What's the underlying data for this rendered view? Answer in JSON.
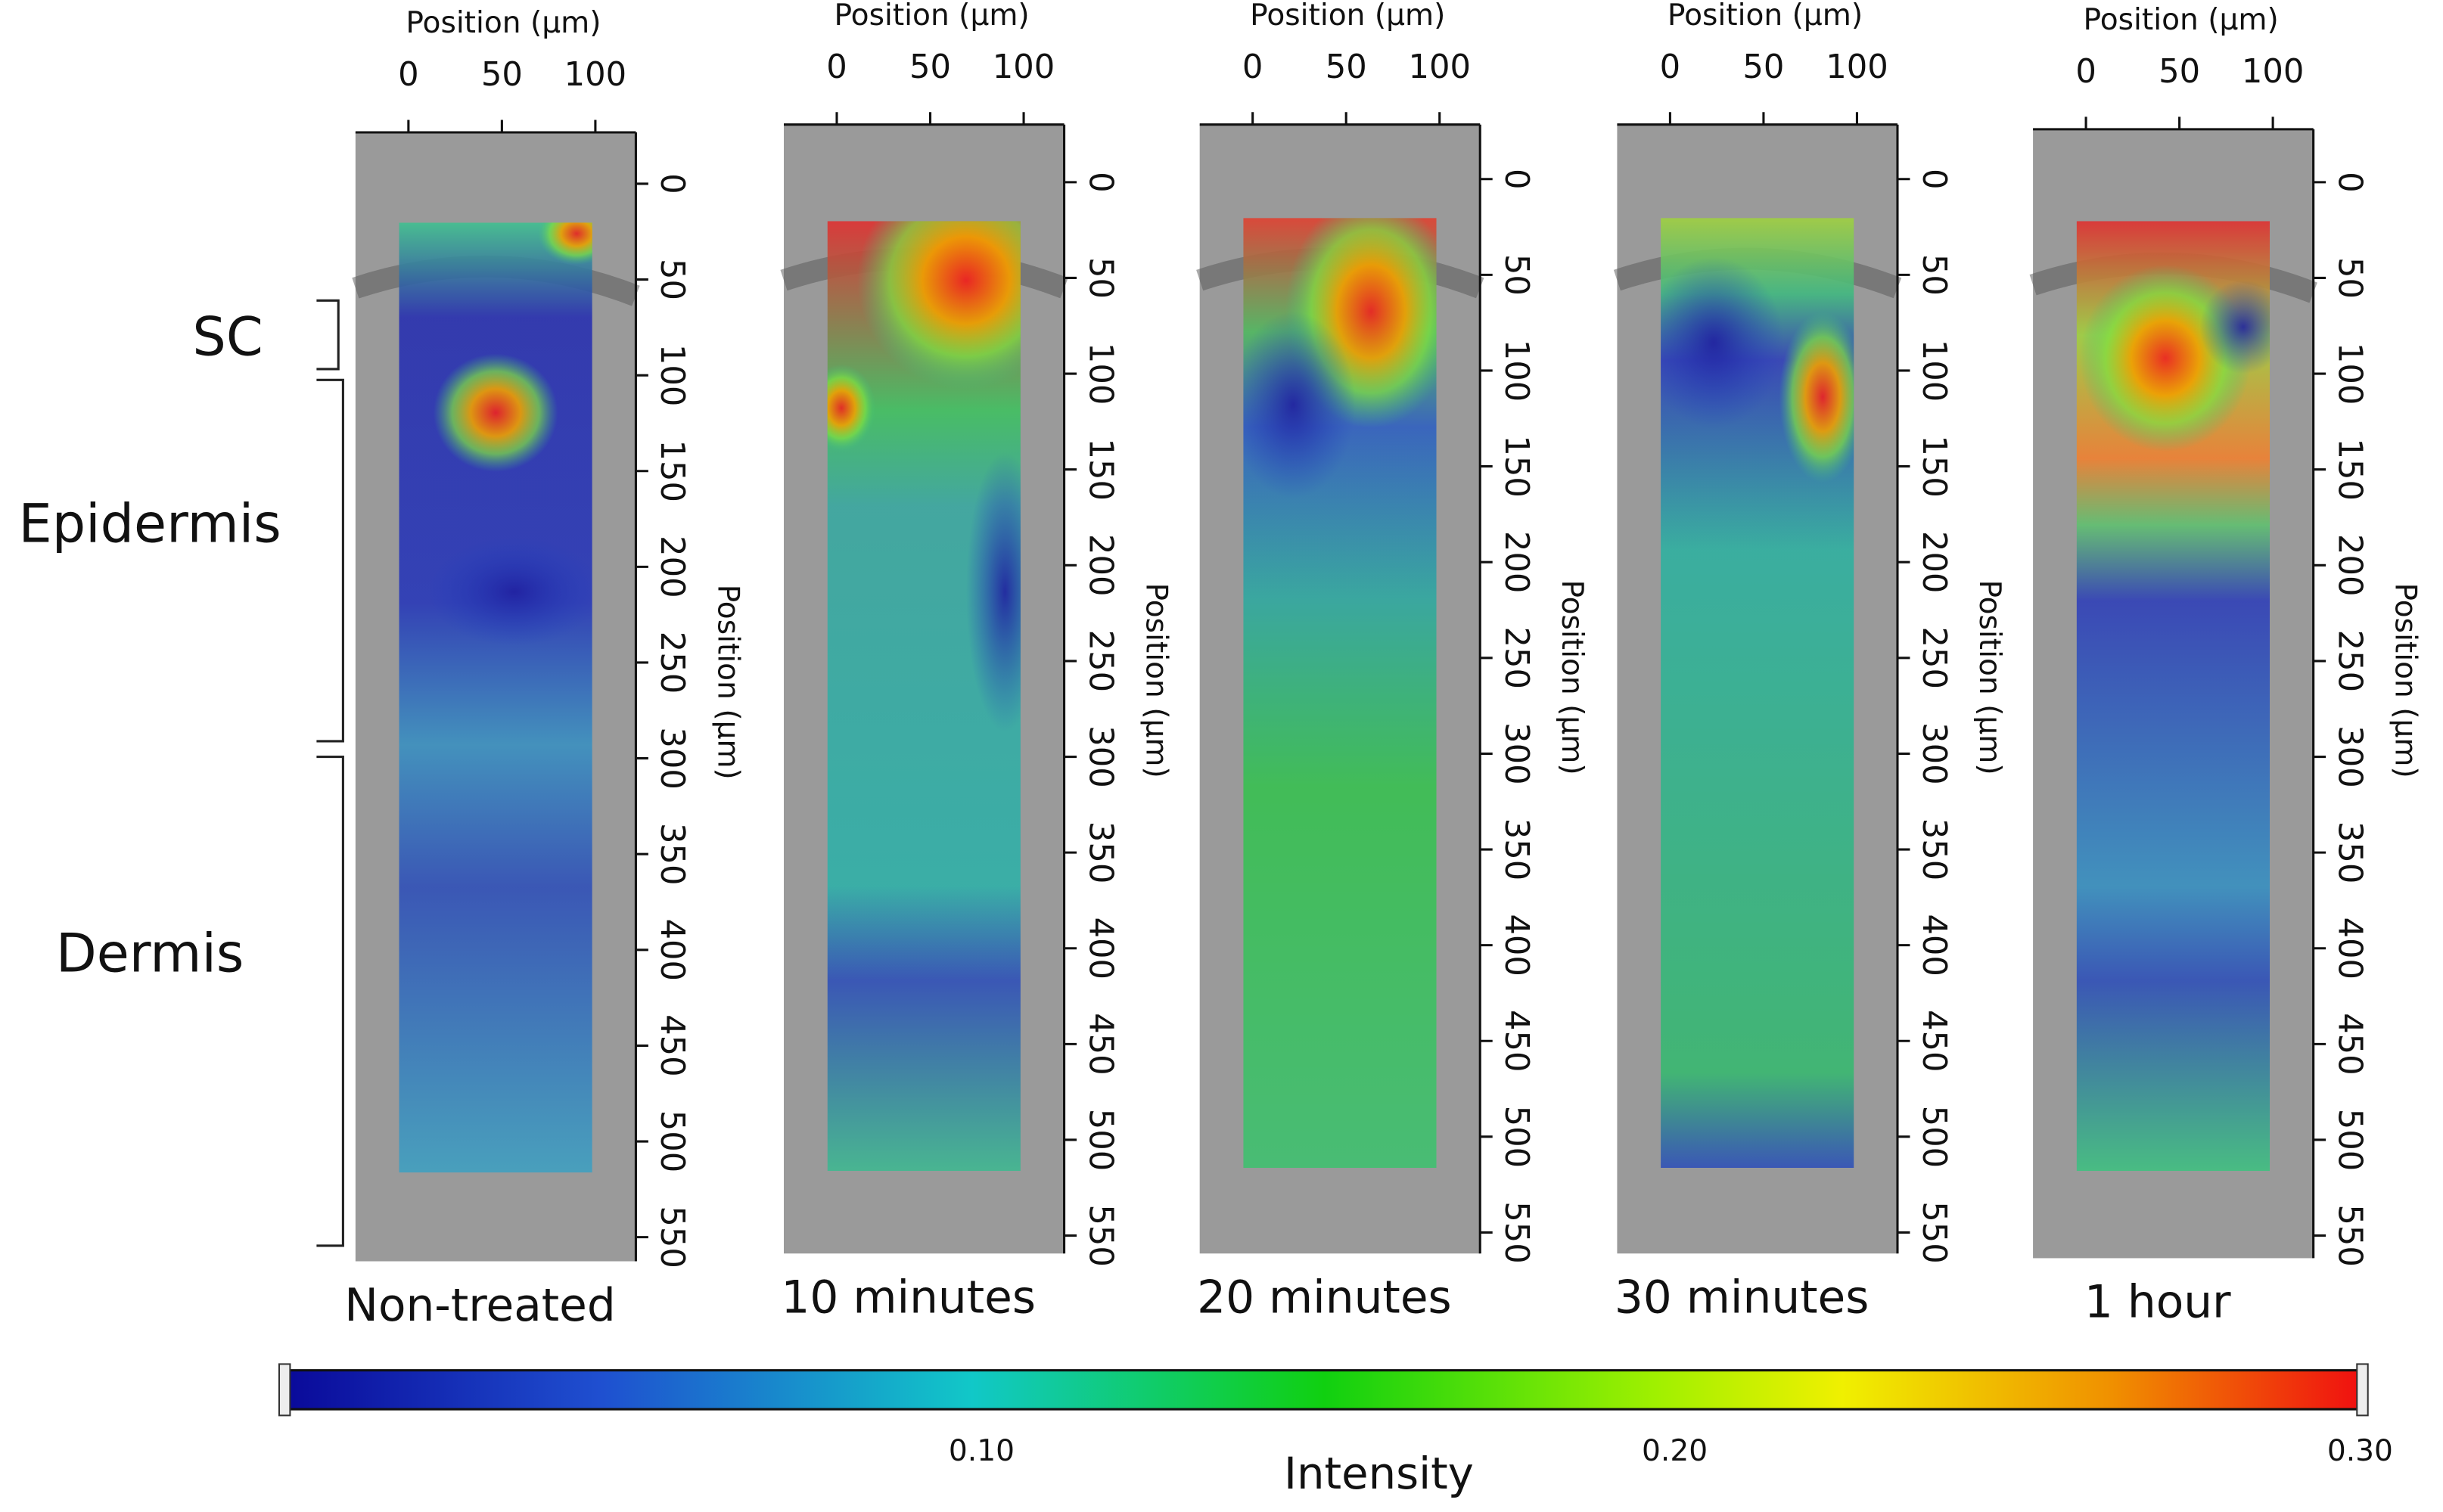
{
  "panels": [
    {
      "title": "Non-treated",
      "x_axis_label": "Position (µm)",
      "x_ticks": [
        "0",
        "50",
        "100"
      ],
      "y_axis_label": "Position (µm)",
      "y_ticks": [
        "0",
        "50",
        "100",
        "150",
        "200",
        "250",
        "300",
        "350",
        "400",
        "450",
        "500",
        "550"
      ]
    },
    {
      "title": "10 minutes",
      "x_axis_label": "Position (µm)",
      "x_ticks": [
        "0",
        "50",
        "100"
      ],
      "y_axis_label": "Position (µm)",
      "y_ticks": [
        "0",
        "50",
        "100",
        "150",
        "200",
        "250",
        "300",
        "350",
        "400",
        "450",
        "500",
        "550"
      ]
    },
    {
      "title": "20 minutes",
      "x_axis_label": "Position (µm)",
      "x_ticks": [
        "0",
        "50",
        "100"
      ],
      "y_axis_label": "Position (µm)",
      "y_ticks": [
        "0",
        "50",
        "100",
        "150",
        "200",
        "250",
        "300",
        "350",
        "400",
        "450",
        "500",
        "550"
      ]
    },
    {
      "title": "30 minutes",
      "x_axis_label": "Position (µm)",
      "x_ticks": [
        "0",
        "50",
        "100"
      ],
      "y_axis_label": "Position (µm)",
      "y_ticks": [
        "0",
        "50",
        "100",
        "150",
        "200",
        "250",
        "300",
        "350",
        "400",
        "450",
        "500",
        "550"
      ]
    },
    {
      "title": "1 hour",
      "x_axis_label": "Position (µm)",
      "x_ticks": [
        "0",
        "50",
        "100"
      ],
      "y_axis_label": "Position (µm)",
      "y_ticks": [
        "0",
        "50",
        "100",
        "150",
        "200",
        "250",
        "300",
        "350",
        "400",
        "450",
        "500",
        "550"
      ]
    }
  ],
  "layers": [
    "SC",
    "Epidermis",
    "Dermis"
  ],
  "colorbar": {
    "label": "Intensity",
    "ticks": [
      "0.10",
      "0.20",
      "0.30"
    ]
  }
}
